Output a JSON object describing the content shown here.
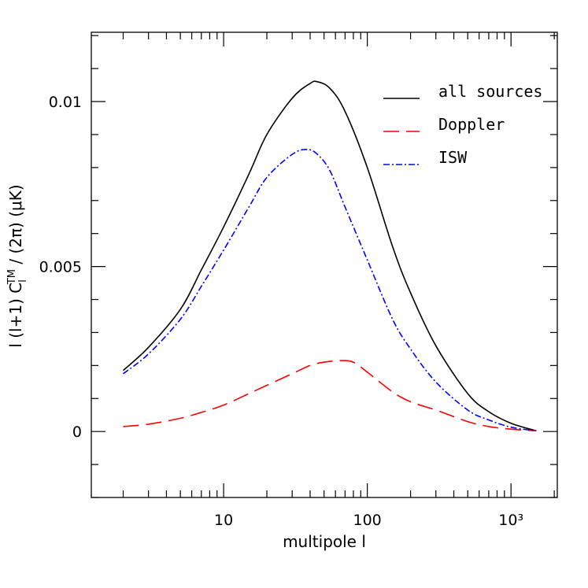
{
  "chart_data": {
    "type": "line",
    "title": "",
    "xlabel": "multipole l",
    "ylabel": "l (l+1) C_l^TM / (2π)  (μK)",
    "x_scale": "log",
    "xlim": [
      1.2,
      2100
    ],
    "ylim": [
      -0.002,
      0.0121
    ],
    "x_ticks": [
      {
        "value": 10,
        "label": "10"
      },
      {
        "value": 100,
        "label": "100"
      },
      {
        "value": 1000,
        "label": "10³"
      }
    ],
    "y_ticks": [
      {
        "value": 0,
        "label": "0"
      },
      {
        "value": 0.005,
        "label": "0.005"
      },
      {
        "value": 0.01,
        "label": "0.01"
      }
    ],
    "grid": false,
    "legend_position": "top-right",
    "series": [
      {
        "name": "all sources",
        "color": "#000000",
        "dash": "solid",
        "points": [
          [
            2,
            0.00185
          ],
          [
            3,
            0.00255
          ],
          [
            5,
            0.0037
          ],
          [
            7,
            0.0049
          ],
          [
            10,
            0.0062
          ],
          [
            15,
            0.0078
          ],
          [
            20,
            0.009
          ],
          [
            30,
            0.0101
          ],
          [
            40,
            0.01055
          ],
          [
            45,
            0.0106
          ],
          [
            55,
            0.0104
          ],
          [
            70,
            0.0097
          ],
          [
            100,
            0.008
          ],
          [
            150,
            0.0056
          ],
          [
            200,
            0.0042
          ],
          [
            300,
            0.0026
          ],
          [
            500,
            0.00115
          ],
          [
            700,
            0.0006
          ],
          [
            1000,
            0.00025
          ],
          [
            1500,
            2e-05
          ]
        ]
      },
      {
        "name": "Doppler",
        "color": "#ff0000",
        "dash": "long-dash",
        "points": [
          [
            2,
            0.00015
          ],
          [
            3,
            0.00022
          ],
          [
            5,
            0.0004
          ],
          [
            7,
            0.00058
          ],
          [
            10,
            0.0008
          ],
          [
            15,
            0.00115
          ],
          [
            20,
            0.0014
          ],
          [
            30,
            0.00175
          ],
          [
            40,
            0.002
          ],
          [
            50,
            0.0021
          ],
          [
            65,
            0.00215
          ],
          [
            80,
            0.0021
          ],
          [
            100,
            0.0018
          ],
          [
            150,
            0.0012
          ],
          [
            200,
            0.0009
          ],
          [
            300,
            0.00065
          ],
          [
            500,
            0.0003
          ],
          [
            700,
            0.00015
          ],
          [
            1000,
            7e-05
          ],
          [
            1500,
            2e-05
          ]
        ]
      },
      {
        "name": "ISW",
        "color": "#0000ff",
        "dash": "dash-dot",
        "points": [
          [
            2,
            0.00175
          ],
          [
            3,
            0.00235
          ],
          [
            5,
            0.0034
          ],
          [
            7,
            0.0044
          ],
          [
            10,
            0.0055
          ],
          [
            15,
            0.0068
          ],
          [
            20,
            0.0077
          ],
          [
            30,
            0.0084
          ],
          [
            38,
            0.00855
          ],
          [
            45,
            0.0084
          ],
          [
            55,
            0.0079
          ],
          [
            70,
            0.0068
          ],
          [
            100,
            0.0052
          ],
          [
            150,
            0.0034
          ],
          [
            200,
            0.0025
          ],
          [
            300,
            0.0015
          ],
          [
            500,
            0.00065
          ],
          [
            700,
            0.00035
          ],
          [
            1000,
            0.00013
          ],
          [
            1500,
            2e-05
          ]
        ]
      }
    ]
  }
}
